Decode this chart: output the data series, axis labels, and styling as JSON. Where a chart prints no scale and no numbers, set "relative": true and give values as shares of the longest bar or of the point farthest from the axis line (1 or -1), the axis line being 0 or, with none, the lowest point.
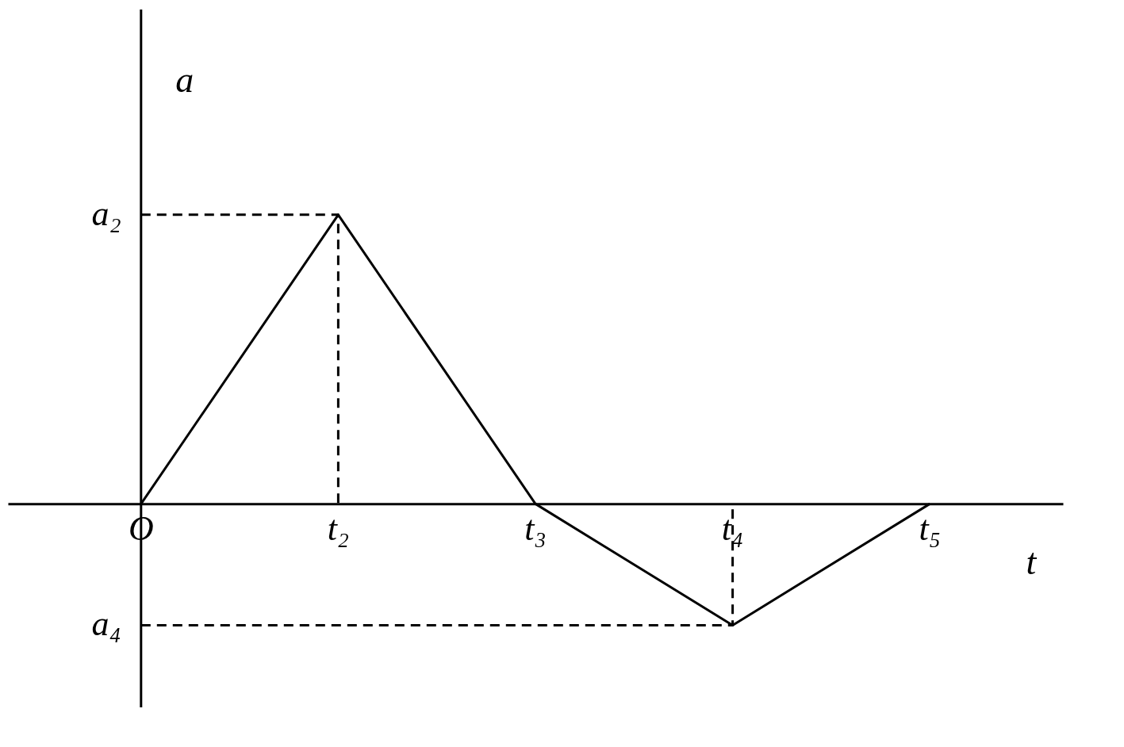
{
  "chart_data": {
    "type": "line",
    "relative": true,
    "xlabel": "t",
    "ylabel": "a",
    "categories": [
      "O",
      "t₂",
      "t₃",
      "t₄",
      "t₅"
    ],
    "series": [
      {
        "values": [
          0,
          1,
          0,
          -0.42,
          0
        ],
        "color": "#000000",
        "line_style": "solid"
      },
      {
        "x": [
          "O",
          "t₂",
          "t₂"
        ],
        "values": [
          1,
          1,
          0
        ],
        "color": "#000000",
        "line_style": "dashed"
      },
      {
        "x": [
          "O",
          "t₄",
          "t₄"
        ],
        "values": [
          -0.42,
          -0.42,
          0
        ],
        "color": "#000000",
        "line_style": "dashed"
      }
    ],
    "annotations": [
      {
        "text": "a₂",
        "x": "O",
        "y": 1
      },
      {
        "text": "a₄",
        "x": "O",
        "y": -0.42
      }
    ],
    "marker": "none"
  }
}
